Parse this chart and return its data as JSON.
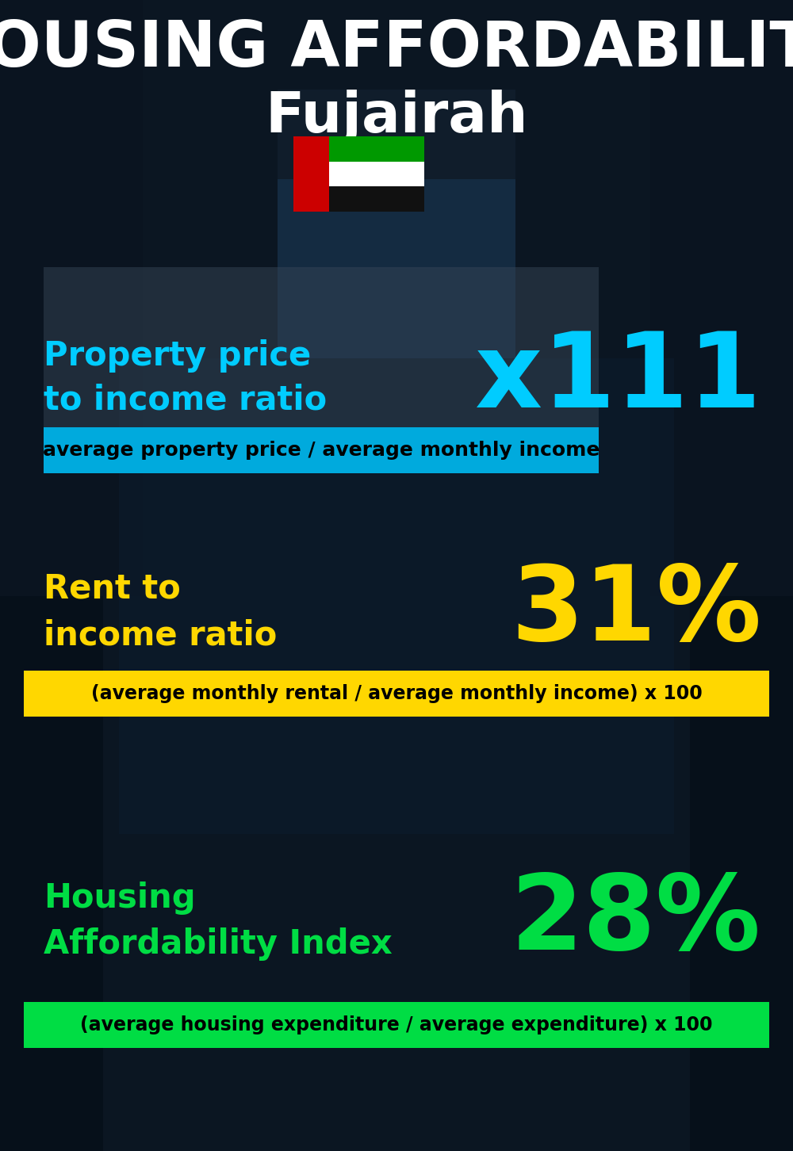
{
  "title_main": "HOUSING AFFORDABILITY",
  "title_sub": "Fujairah",
  "bg_color": "#0b1622",
  "section1_label": "Property price\nto income ratio",
  "section1_value": "x111",
  "section1_label_color": "#00ccff",
  "section1_value_color": "#00ccff",
  "section1_formula": "average property price / average monthly income",
  "section1_formula_bg": "#00aadd",
  "section2_label": "Rent to\nincome ratio",
  "section2_value": "31%",
  "section2_label_color": "#ffd700",
  "section2_value_color": "#ffd700",
  "section2_formula": "(average monthly rental / average monthly income) x 100",
  "section2_formula_bg": "#ffd700",
  "section3_label": "Housing\nAffordability Index",
  "section3_value": "28%",
  "section3_label_color": "#00dd44",
  "section3_value_color": "#00dd44",
  "section3_formula": "(average housing expenditure / average expenditure) x 100",
  "section3_formula_bg": "#00dd44",
  "title_color": "#ffffff",
  "subtitle_color": "#ffffff",
  "formula_text_color": "#000000",
  "fig_width": 10.0,
  "fig_height": 14.52,
  "dpi": 100
}
